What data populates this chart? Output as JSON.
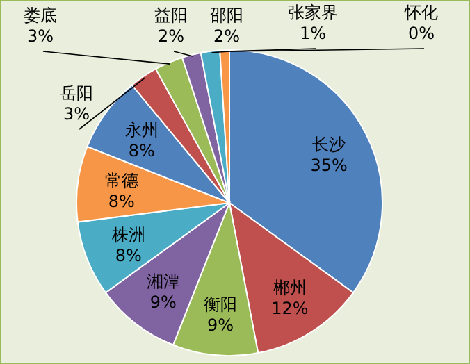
{
  "chart_data": {
    "type": "pie",
    "categories": [
      "长沙",
      "郴州",
      "衡阳",
      "湘潭",
      "株洲",
      "常德",
      "永州",
      "岳阳",
      "娄底",
      "益阳",
      "邵阳",
      "张家界",
      "怀化"
    ],
    "values": [
      35,
      12,
      9,
      9,
      8,
      8,
      8,
      3,
      3,
      2,
      2,
      1,
      0
    ],
    "value_labels": [
      "35%",
      "12%",
      "9%",
      "9%",
      "8%",
      "8%",
      "8%",
      "3%",
      "3%",
      "2%",
      "2%",
      "1%",
      "0%"
    ],
    "colors": [
      "#4f81bd",
      "#c0504d",
      "#9bbb59",
      "#8064a2",
      "#4bacc6",
      "#f79646",
      "#4f81bd",
      "#c0504d",
      "#9bbb59",
      "#8064a2",
      "#4bacc6",
      "#f79646",
      "#4f81bd"
    ],
    "legend": false
  }
}
